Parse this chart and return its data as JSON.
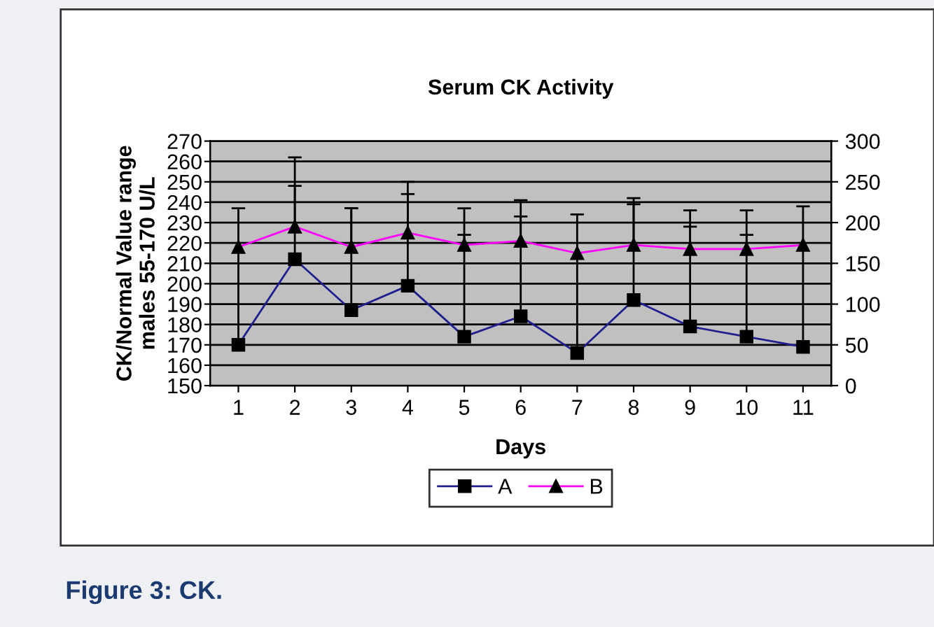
{
  "chart_data": {
    "type": "line",
    "title": "Serum CK Activity",
    "xlabel": "Days",
    "ylabel": "CK/Normal Value range\nmales 55-170 U/L",
    "annotations": [
      "Figure 3: CK."
    ],
    "categories": [
      "1",
      "2",
      "3",
      "4",
      "5",
      "6",
      "7",
      "8",
      "9",
      "10",
      "11"
    ],
    "series": [
      {
        "name": "A",
        "color": "#1f1f8f",
        "marker": "square",
        "values": [
          170,
          212,
          187,
          199,
          174,
          184,
          166,
          192,
          179,
          174,
          169
        ],
        "errors": [
          [
            170,
            237
          ],
          [
            212,
            262
          ],
          [
            187,
            237
          ],
          [
            199,
            250
          ],
          [
            174,
            237
          ],
          [
            184,
            241
          ],
          [
            166,
            234
          ],
          [
            192,
            242
          ],
          [
            179,
            236
          ],
          [
            174,
            236
          ],
          [
            169,
            238
          ]
        ]
      },
      {
        "name": "B",
        "color": "#ff00ff",
        "marker": "triangle",
        "values": [
          218,
          228,
          218,
          225,
          219,
          221,
          215,
          219,
          217,
          217,
          219
        ],
        "errors": [
          null,
          [
            228,
            248
          ],
          [
            218,
            237
          ],
          [
            225,
            244
          ],
          [
            219,
            224
          ],
          [
            221,
            233
          ],
          null,
          [
            219,
            239
          ],
          [
            217,
            228
          ],
          [
            217,
            224
          ],
          null
        ]
      }
    ],
    "ylim": [
      150,
      270
    ],
    "yticks": [
      150,
      160,
      170,
      180,
      190,
      200,
      210,
      220,
      230,
      240,
      250,
      260,
      270
    ],
    "y2lim": [
      0,
      300
    ],
    "y2ticks": [
      0,
      50,
      100,
      150,
      200,
      250,
      300
    ],
    "grid": "y",
    "legend": "bottom"
  }
}
